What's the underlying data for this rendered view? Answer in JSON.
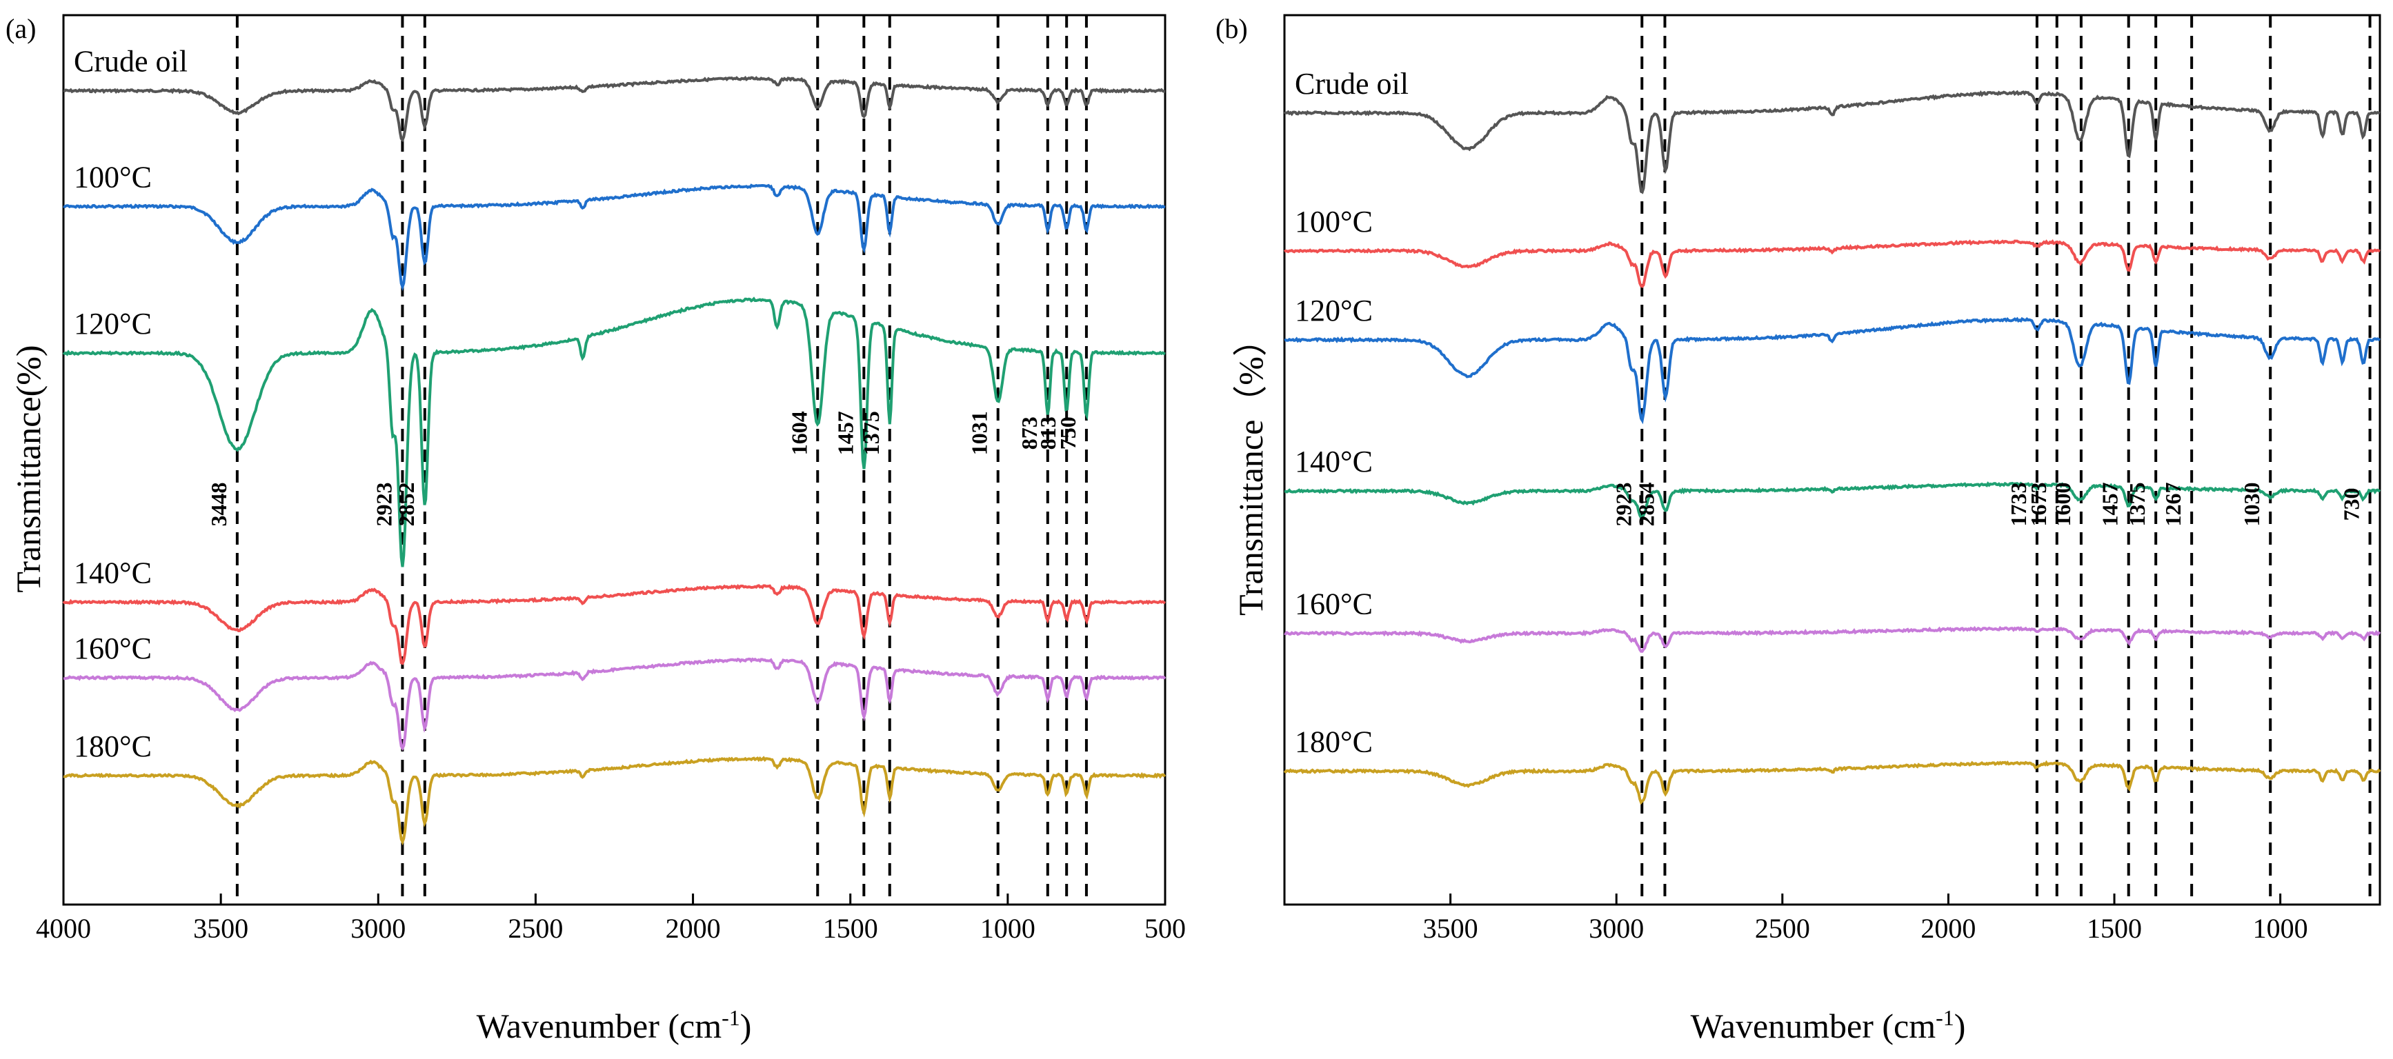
{
  "chart_data": [
    {
      "type": "line",
      "panel_label": "(a)",
      "xlabel": "Wavenumber (cm",
      "xlabel_sup": "-1",
      "xlabel_suffix": ")",
      "ylabel": "Transmittance(%)",
      "xlim": [
        4000,
        500
      ],
      "x_ticks": [
        "4000",
        "3500",
        "3000",
        "2500",
        "2000",
        "1500",
        "1000",
        "500"
      ],
      "grid": false,
      "series": [
        {
          "name": "Crude oil",
          "color": "#555555",
          "baseline": 0.085,
          "scale": 0.055
        },
        {
          "name": "100°C",
          "color": "#1f6fcc",
          "baseline": 0.215,
          "scale": 0.09
        },
        {
          "name": "120°C",
          "color": "#1fa072",
          "baseline": 0.38,
          "scale": 0.24
        },
        {
          "name": "140°C",
          "color": "#f05050",
          "baseline": 0.66,
          "scale": 0.07
        },
        {
          "name": "160°C",
          "color": "#c77ad9",
          "baseline": 0.745,
          "scale": 0.08
        },
        {
          "name": "180°C",
          "color": "#c9a021",
          "baseline": 0.855,
          "scale": 0.075
        }
      ],
      "peaks": [
        {
          "x": 3448,
          "label": "3448"
        },
        {
          "x": 2923,
          "label": "2923"
        },
        {
          "x": 2852,
          "label": "2852"
        },
        {
          "x": 1604,
          "label": "1604"
        },
        {
          "x": 1457,
          "label": "1457"
        },
        {
          "x": 1375,
          "label": "1375"
        },
        {
          "x": 1031,
          "label": "1031"
        },
        {
          "x": 873,
          "label": "873"
        },
        {
          "x": 813,
          "label": "813"
        },
        {
          "x": 750,
          "label": "750"
        }
      ]
    },
    {
      "type": "line",
      "panel_label": "(b)",
      "xlabel": "Wavenumber (cm",
      "xlabel_sup": "-1",
      "xlabel_suffix": ")",
      "ylabel": "Transmittance（%）",
      "xlim": [
        4000,
        700
      ],
      "x_ticks": [
        "3500",
        "3000",
        "2500",
        "2000",
        "1500",
        "1000"
      ],
      "grid": false,
      "series": [
        {
          "name": "Crude oil",
          "color": "#555555",
          "baseline": 0.11,
          "scale": 0.09
        },
        {
          "name": "100°C",
          "color": "#f05050",
          "baseline": 0.265,
          "scale": 0.04
        },
        {
          "name": "120°C",
          "color": "#1f6fcc",
          "baseline": 0.365,
          "scale": 0.09
        },
        {
          "name": "140°C",
          "color": "#1fa072",
          "baseline": 0.535,
          "scale": 0.03
        },
        {
          "name": "160°C",
          "color": "#c77ad9",
          "baseline": 0.695,
          "scale": 0.02
        },
        {
          "name": "180°C",
          "color": "#c9a021",
          "baseline": 0.85,
          "scale": 0.035
        }
      ],
      "peaks": [
        {
          "x": 2923,
          "label": "2923"
        },
        {
          "x": 2854,
          "label": "2854"
        },
        {
          "x": 1733,
          "label": "1733"
        },
        {
          "x": 1673,
          "label": "1673"
        },
        {
          "x": 1600,
          "label": "1600"
        },
        {
          "x": 1457,
          "label": "1457"
        },
        {
          "x": 1375,
          "label": "1375"
        },
        {
          "x": 1267,
          "label": "1267"
        },
        {
          "x": 1030,
          "label": "1030"
        },
        {
          "x": 730,
          "label": "730"
        }
      ]
    }
  ]
}
